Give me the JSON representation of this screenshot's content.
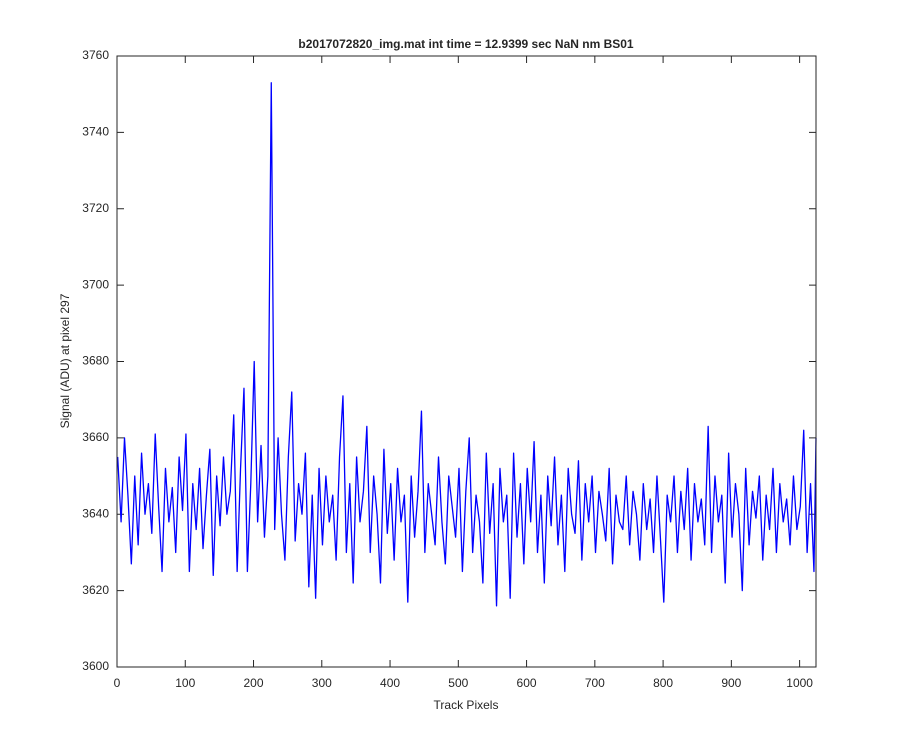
{
  "chart_data": {
    "type": "line",
    "title": "b2017072820_img.mat int time = 12.9399 sec  NaN nm BS01",
    "x_label": "Track Pixels",
    "y_label": "Signal (ADU) at pixel 297",
    "xlim": [
      0,
      1024
    ],
    "ylim": [
      3600,
      3760
    ],
    "xticks": [
      0,
      100,
      200,
      300,
      400,
      500,
      600,
      700,
      800,
      900,
      1000
    ],
    "yticks": [
      3600,
      3620,
      3640,
      3660,
      3680,
      3700,
      3720,
      3740,
      3760
    ],
    "grid": false,
    "x": [
      1,
      6,
      11,
      16,
      21,
      26,
      31,
      36,
      41,
      46,
      51,
      56,
      61,
      66,
      71,
      76,
      81,
      86,
      91,
      96,
      101,
      106,
      111,
      116,
      121,
      126,
      131,
      136,
      141,
      146,
      151,
      156,
      161,
      166,
      171,
      176,
      181,
      186,
      191,
      196,
      201,
      206,
      211,
      216,
      221,
      226,
      231,
      236,
      241,
      246,
      251,
      256,
      261,
      266,
      271,
      276,
      281,
      286,
      291,
      296,
      301,
      306,
      311,
      316,
      321,
      326,
      331,
      336,
      341,
      346,
      351,
      356,
      361,
      366,
      371,
      376,
      381,
      386,
      391,
      396,
      401,
      406,
      411,
      416,
      421,
      426,
      431,
      436,
      441,
      446,
      451,
      456,
      461,
      466,
      471,
      476,
      481,
      486,
      491,
      496,
      501,
      506,
      511,
      516,
      521,
      526,
      531,
      536,
      541,
      546,
      551,
      556,
      561,
      566,
      571,
      576,
      581,
      586,
      591,
      596,
      601,
      606,
      611,
      616,
      621,
      626,
      631,
      636,
      641,
      646,
      651,
      656,
      661,
      666,
      671,
      676,
      681,
      686,
      691,
      696,
      701,
      706,
      711,
      716,
      721,
      726,
      731,
      736,
      741,
      746,
      751,
      756,
      761,
      766,
      771,
      776,
      781,
      786,
      791,
      796,
      801,
      806,
      811,
      816,
      821,
      826,
      831,
      836,
      841,
      846,
      851,
      856,
      861,
      866,
      871,
      876,
      881,
      886,
      891,
      896,
      901,
      906,
      911,
      916,
      921,
      926,
      931,
      936,
      941,
      946,
      951,
      956,
      961,
      966,
      971,
      976,
      981,
      986,
      991,
      996,
      1001,
      1006,
      1011,
      1016,
      1021,
      1024
    ],
    "series": [
      {
        "name": "signal",
        "color": "#0000ff",
        "values": [
          3655,
          3638,
          3660,
          3645,
          3627,
          3650,
          3632,
          3656,
          3640,
          3648,
          3635,
          3661,
          3642,
          3625,
          3652,
          3638,
          3647,
          3630,
          3655,
          3641,
          3661,
          3625,
          3648,
          3636,
          3652,
          3631,
          3645,
          3657,
          3624,
          3650,
          3637,
          3655,
          3640,
          3646,
          3666,
          3625,
          3652,
          3673,
          3625,
          3648,
          3680,
          3638,
          3658,
          3634,
          3650,
          3753,
          3636,
          3660,
          3640,
          3628,
          3655,
          3672,
          3633,
          3648,
          3640,
          3656,
          3621,
          3645,
          3618,
          3652,
          3632,
          3650,
          3638,
          3645,
          3628,
          3655,
          3671,
          3630,
          3648,
          3622,
          3655,
          3638,
          3646,
          3663,
          3630,
          3650,
          3640,
          3622,
          3657,
          3635,
          3648,
          3628,
          3652,
          3638,
          3645,
          3617,
          3650,
          3634,
          3646,
          3667,
          3630,
          3648,
          3640,
          3632,
          3655,
          3638,
          3627,
          3650,
          3642,
          3634,
          3652,
          3625,
          3646,
          3660,
          3630,
          3645,
          3638,
          3622,
          3656,
          3635,
          3648,
          3616,
          3652,
          3638,
          3645,
          3618,
          3656,
          3634,
          3648,
          3627,
          3652,
          3638,
          3659,
          3630,
          3645,
          3622,
          3650,
          3637,
          3655,
          3632,
          3645,
          3625,
          3652,
          3640,
          3635,
          3654,
          3628,
          3648,
          3638,
          3650,
          3630,
          3646,
          3640,
          3633,
          3652,
          3627,
          3645,
          3638,
          3636,
          3650,
          3632,
          3646,
          3640,
          3628,
          3648,
          3636,
          3644,
          3630,
          3650,
          3634,
          3617,
          3645,
          3638,
          3650,
          3630,
          3646,
          3636,
          3652,
          3628,
          3648,
          3638,
          3644,
          3632,
          3663,
          3630,
          3650,
          3638,
          3645,
          3622,
          3656,
          3634,
          3648,
          3640,
          3620,
          3652,
          3632,
          3646,
          3639,
          3650,
          3628,
          3645,
          3636,
          3652,
          3630,
          3648,
          3638,
          3644,
          3632,
          3650,
          3636,
          3642,
          3662,
          3630,
          3648,
          3625,
          3660
        ]
      }
    ]
  }
}
